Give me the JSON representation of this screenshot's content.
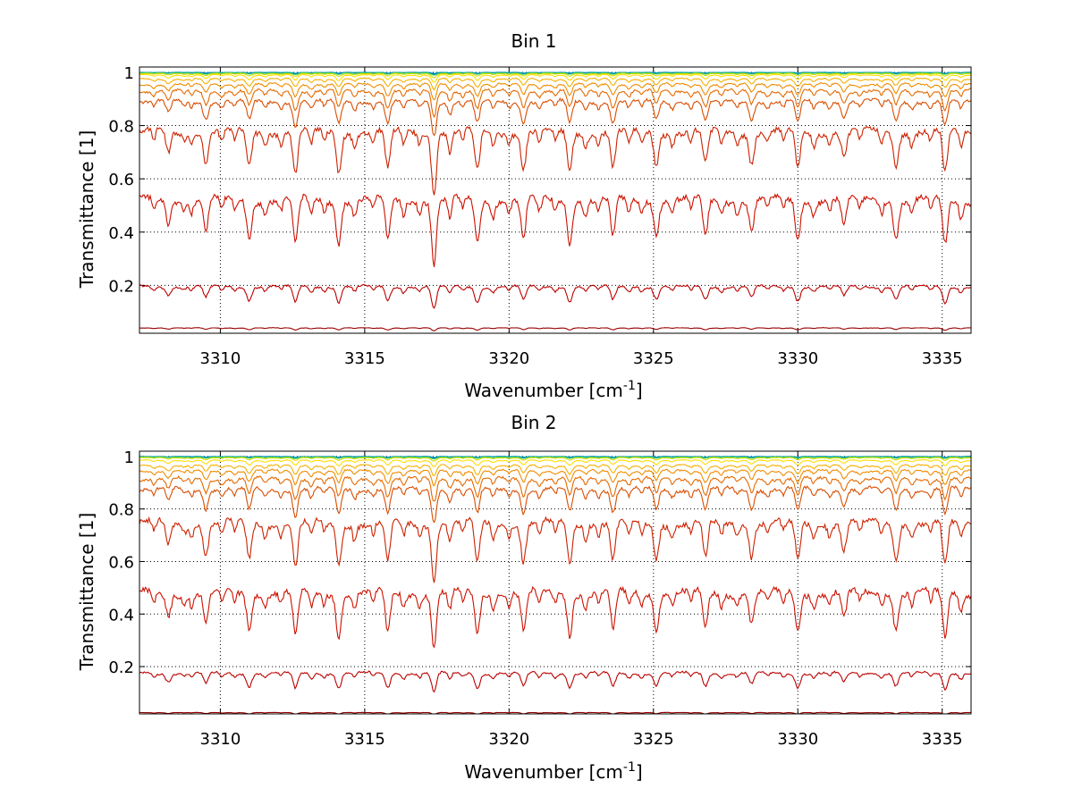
{
  "chart_data": [
    {
      "type": "line",
      "title": "Bin 1",
      "xlabel": "Wavenumber [cm",
      "xlabel_sup": "-1",
      "xlabel_end": "]",
      "ylabel": "Transmittance [1]",
      "xlim": [
        3307.2,
        3336.0
      ],
      "ylim": [
        0.02,
        1.02
      ],
      "xticks": [
        "3310",
        "3315",
        "3320",
        "3325",
        "3330",
        "3335"
      ],
      "yticks": [
        "0.2",
        "0.4",
        "0.6",
        "0.8",
        "1"
      ],
      "grid": true,
      "legend": "none",
      "series_note": "family of transmittance spectra; baselines read from plot, lines share common absorption positions",
      "series": [
        {
          "color": "#00bfbf",
          "baseline": 1.0,
          "depth_scale": 0.003
        },
        {
          "color": "#0066cc",
          "baseline": 0.999,
          "depth_scale": 0.004
        },
        {
          "color": "#33cc66",
          "baseline": 0.998,
          "depth_scale": 0.006
        },
        {
          "color": "#ccdd00",
          "baseline": 0.995,
          "depth_scale": 0.01
        },
        {
          "color": "#ffdd00",
          "baseline": 0.99,
          "depth_scale": 0.02
        },
        {
          "color": "#f5b000",
          "baseline": 0.975,
          "depth_scale": 0.03
        },
        {
          "color": "#f08c00",
          "baseline": 0.955,
          "depth_scale": 0.045
        },
        {
          "color": "#e56a00",
          "baseline": 0.93,
          "depth_scale": 0.07
        },
        {
          "color": "#d94d00",
          "baseline": 0.89,
          "depth_scale": 0.09
        },
        {
          "color": "#cc2200",
          "baseline": 0.775,
          "depth_scale": 0.16
        },
        {
          "color": "#cc1100",
          "baseline": 0.52,
          "depth_scale": 0.17
        },
        {
          "color": "#bb0000",
          "baseline": 0.195,
          "depth_scale": 0.06
        },
        {
          "color": "#990000",
          "baseline": 0.04,
          "depth_scale": 0.008
        }
      ],
      "lines_at": [
        3308.2,
        3309.5,
        3311.0,
        3312.6,
        3314.1,
        3315.8,
        3317.4,
        3318.9,
        3320.5,
        3322.1,
        3323.6,
        3325.1,
        3326.8,
        3328.4,
        3330.0,
        3331.6,
        3333.4,
        3335.1
      ],
      "line_strengths": [
        0.5,
        0.7,
        0.8,
        1.0,
        0.95,
        0.9,
        1.4,
        0.95,
        0.85,
        0.9,
        0.85,
        0.75,
        0.8,
        0.7,
        0.85,
        0.6,
        0.8,
        1.0
      ]
    },
    {
      "type": "line",
      "title": "Bin 2",
      "xlabel": "Wavenumber [cm",
      "xlabel_sup": "-1",
      "xlabel_end": "]",
      "ylabel": "Transmittance [1]",
      "xlim": [
        3307.2,
        3336.0
      ],
      "ylim": [
        0.02,
        1.02
      ],
      "xticks": [
        "3310",
        "3315",
        "3320",
        "3325",
        "3330",
        "3335"
      ],
      "yticks": [
        "0.2",
        "0.4",
        "0.6",
        "0.8",
        "1"
      ],
      "grid": true,
      "legend": "none",
      "series": [
        {
          "color": "#00bfbf",
          "baseline": 1.0,
          "depth_scale": 0.003
        },
        {
          "color": "#0066cc",
          "baseline": 0.999,
          "depth_scale": 0.004
        },
        {
          "color": "#33cc66",
          "baseline": 0.998,
          "depth_scale": 0.006
        },
        {
          "color": "#ccdd00",
          "baseline": 0.995,
          "depth_scale": 0.01
        },
        {
          "color": "#ffdd00",
          "baseline": 0.985,
          "depth_scale": 0.02
        },
        {
          "color": "#f5b000",
          "baseline": 0.965,
          "depth_scale": 0.035
        },
        {
          "color": "#f08c00",
          "baseline": 0.945,
          "depth_scale": 0.05
        },
        {
          "color": "#e56a00",
          "baseline": 0.915,
          "depth_scale": 0.075
        },
        {
          "color": "#d94d00",
          "baseline": 0.875,
          "depth_scale": 0.1
        },
        {
          "color": "#cc2200",
          "baseline": 0.745,
          "depth_scale": 0.17
        },
        {
          "color": "#cc1100",
          "baseline": 0.48,
          "depth_scale": 0.17
        },
        {
          "color": "#bb0000",
          "baseline": 0.175,
          "depth_scale": 0.06
        },
        {
          "color": "#990000",
          "baseline": 0.025,
          "depth_scale": 0.006
        }
      ],
      "lines_at": [
        3308.2,
        3309.5,
        3311.0,
        3312.6,
        3314.1,
        3315.8,
        3317.4,
        3318.9,
        3320.5,
        3322.1,
        3323.6,
        3325.1,
        3326.8,
        3328.4,
        3330.0,
        3331.6,
        3333.4,
        3335.1
      ],
      "line_strengths": [
        0.5,
        0.7,
        0.8,
        1.0,
        0.95,
        0.9,
        1.2,
        0.95,
        0.85,
        0.9,
        0.85,
        0.75,
        0.8,
        0.7,
        0.85,
        0.6,
        0.8,
        1.0
      ]
    }
  ]
}
